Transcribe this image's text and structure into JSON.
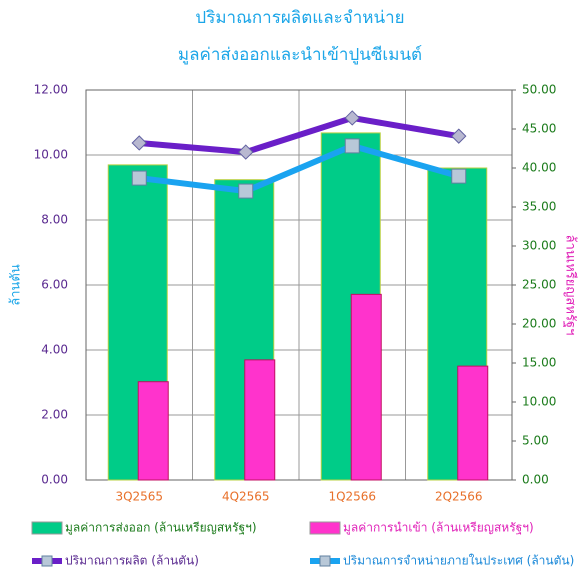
{
  "chart_data": {
    "type": "bar-line",
    "title": "ปริมาณการผลิตและจำหน่าย",
    "subtitle": "มูลค่าส่งออกและนำเข้าปูนซีเมนต์",
    "y_label": "ล้านตัน",
    "y2_label": "ล้านเหรียญสหรัฐฯ",
    "categories": [
      "3Q2565",
      "4Q2565",
      "1Q2566",
      "2Q2566"
    ],
    "ylim": [
      0,
      12
    ],
    "yticks": [
      {
        "value": 0,
        "label": "0.00"
      },
      {
        "value": 2,
        "label": "2.00"
      },
      {
        "value": 4,
        "label": "4.00"
      },
      {
        "value": 6,
        "label": "6.00"
      },
      {
        "value": 8,
        "label": "8.00"
      },
      {
        "value": 10,
        "label": "10.00"
      },
      {
        "value": 12,
        "label": "12.00"
      }
    ],
    "y2lim": [
      0,
      50
    ],
    "y2ticks": [
      {
        "value": 0,
        "label": "0.00"
      },
      {
        "value": 5,
        "label": "5.00"
      },
      {
        "value": 10,
        "label": "10.00"
      },
      {
        "value": 15,
        "label": "15.00"
      },
      {
        "value": 20,
        "label": "20.00"
      },
      {
        "value": 25,
        "label": "25.00"
      },
      {
        "value": 30,
        "label": "30.00"
      },
      {
        "value": 35,
        "label": "35.00"
      },
      {
        "value": 40,
        "label": "40.00"
      },
      {
        "value": 45,
        "label": "45.00"
      },
      {
        "value": 50,
        "label": "50.00"
      }
    ],
    "grid": true,
    "series": [
      {
        "name": "มูลค่าการส่งออก (ล้านเหรียญสหรัฐฯ)",
        "type": "bar",
        "axis": "y2",
        "color": "#00cc88",
        "values": [
          40.4,
          38.5,
          44.5,
          40.0
        ]
      },
      {
        "name": "มูลค่าการนำเข้า (ล้านเหรียญสหรัฐฯ)",
        "type": "bar",
        "axis": "y2",
        "color": "#ff33cc",
        "values": [
          12.6,
          15.4,
          23.8,
          14.6
        ]
      },
      {
        "name": "ปริมาณการผลิต (ล้านตัน)",
        "type": "line",
        "axis": "y",
        "color": "#6a1fc8",
        "values": [
          10.37,
          10.09,
          11.14,
          10.58
        ]
      },
      {
        "name": "ปริมาณการจำหน่ายภายในประเทศ (ล้านตัน)",
        "type": "line",
        "axis": "y",
        "color": "#1aa3f0",
        "values": [
          9.29,
          8.89,
          10.28,
          9.35
        ]
      }
    ]
  }
}
